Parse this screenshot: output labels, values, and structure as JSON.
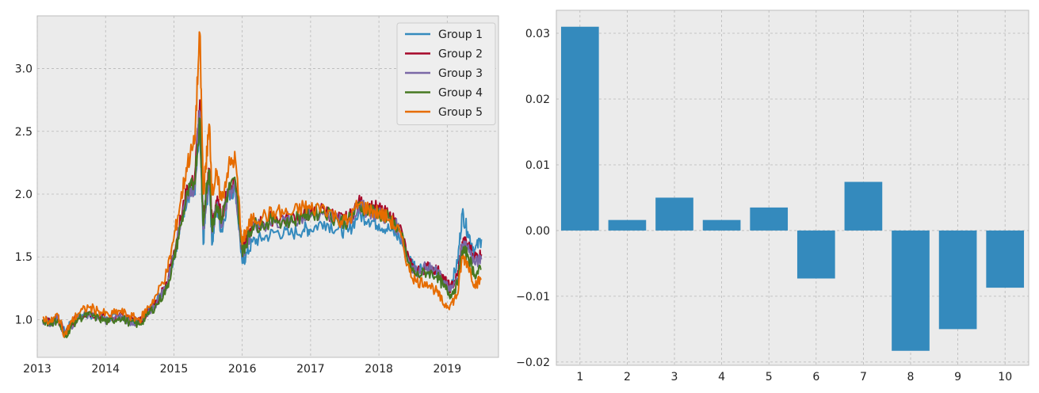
{
  "chart_data": [
    {
      "type": "line",
      "title": "",
      "xlabel": "",
      "ylabel": "",
      "xlim": [
        2013.0,
        2019.75
      ],
      "ylim": [
        0.7,
        3.42
      ],
      "xticks": [
        2013,
        2014,
        2015,
        2016,
        2017,
        2018,
        2019
      ],
      "xtick_labels": [
        "2013",
        "2014",
        "2015",
        "2016",
        "2017",
        "2018",
        "2019"
      ],
      "yticks": [
        1.0,
        1.5,
        2.0,
        2.5,
        3.0
      ],
      "ytick_labels": [
        "1.0",
        "1.5",
        "2.0",
        "2.5",
        "3.0"
      ],
      "grid": true,
      "legend": "top-right",
      "x": [
        2013.08,
        2013.2,
        2013.3,
        2013.4,
        2013.5,
        2013.6,
        2013.75,
        2013.9,
        2014.05,
        2014.2,
        2014.35,
        2014.5,
        2014.6,
        2014.75,
        2014.9,
        2015.0,
        2015.1,
        2015.2,
        2015.3,
        2015.38,
        2015.43,
        2015.47,
        2015.52,
        2015.56,
        2015.62,
        2015.7,
        2015.8,
        2015.9,
        2016.0,
        2016.05,
        2016.15,
        2016.3,
        2016.5,
        2016.7,
        2016.9,
        2017.0,
        2017.2,
        2017.4,
        2017.55,
        2017.7,
        2017.85,
        2018.0,
        2018.15,
        2018.3,
        2018.45,
        2018.55,
        2018.7,
        2018.85,
        2018.95,
        2019.05,
        2019.15,
        2019.22,
        2019.3,
        2019.4,
        2019.5
      ],
      "series": [
        {
          "name": "Group 1",
          "color": "#348ABD",
          "values": [
            1.0,
            0.98,
            1.02,
            0.9,
            0.97,
            1.02,
            1.05,
            1.02,
            1.0,
            1.03,
            0.99,
            0.98,
            1.05,
            1.15,
            1.3,
            1.5,
            1.75,
            2.0,
            2.0,
            2.5,
            1.6,
            1.9,
            2.1,
            1.6,
            1.9,
            1.7,
            2.0,
            2.05,
            1.45,
            1.5,
            1.62,
            1.65,
            1.7,
            1.68,
            1.72,
            1.72,
            1.78,
            1.72,
            1.7,
            1.84,
            1.8,
            1.76,
            1.72,
            1.65,
            1.48,
            1.42,
            1.42,
            1.35,
            1.3,
            1.28,
            1.45,
            1.85,
            1.7,
            1.55,
            1.64
          ]
        },
        {
          "name": "Group 2",
          "color": "#A60628",
          "values": [
            1.0,
            0.97,
            1.02,
            0.88,
            0.96,
            1.03,
            1.06,
            1.03,
            1.0,
            1.04,
            1.0,
            0.98,
            1.05,
            1.15,
            1.3,
            1.55,
            1.8,
            2.05,
            2.1,
            2.75,
            1.8,
            2.0,
            2.2,
            1.75,
            1.95,
            1.82,
            2.05,
            2.1,
            1.55,
            1.6,
            1.75,
            1.78,
            1.82,
            1.8,
            1.85,
            1.85,
            1.88,
            1.8,
            1.8,
            1.93,
            1.9,
            1.88,
            1.82,
            1.75,
            1.45,
            1.38,
            1.42,
            1.4,
            1.32,
            1.25,
            1.35,
            1.62,
            1.6,
            1.5,
            1.52
          ]
        },
        {
          "name": "Group 3",
          "color": "#7A68A6",
          "values": [
            1.0,
            0.97,
            1.01,
            0.87,
            0.95,
            1.02,
            1.05,
            1.02,
            0.99,
            1.03,
            0.99,
            0.97,
            1.04,
            1.14,
            1.28,
            1.52,
            1.78,
            2.02,
            2.05,
            2.65,
            1.72,
            1.95,
            2.15,
            1.7,
            1.9,
            1.78,
            2.02,
            2.06,
            1.52,
            1.57,
            1.72,
            1.75,
            1.78,
            1.77,
            1.82,
            1.82,
            1.86,
            1.78,
            1.78,
            1.9,
            1.87,
            1.84,
            1.8,
            1.72,
            1.45,
            1.38,
            1.42,
            1.38,
            1.3,
            1.23,
            1.32,
            1.6,
            1.58,
            1.45,
            1.48
          ]
        },
        {
          "name": "Group 4",
          "color": "#467821",
          "values": [
            1.0,
            0.97,
            1.0,
            0.86,
            0.95,
            1.01,
            1.04,
            1.01,
            0.98,
            1.02,
            0.98,
            0.96,
            1.03,
            1.12,
            1.25,
            1.48,
            1.75,
            2.0,
            2.1,
            2.6,
            1.75,
            2.0,
            2.18,
            1.72,
            1.92,
            1.8,
            2.04,
            2.1,
            1.55,
            1.6,
            1.75,
            1.76,
            1.8,
            1.78,
            1.84,
            1.84,
            1.87,
            1.79,
            1.78,
            1.91,
            1.88,
            1.85,
            1.8,
            1.72,
            1.42,
            1.35,
            1.38,
            1.35,
            1.26,
            1.2,
            1.28,
            1.55,
            1.52,
            1.36,
            1.4
          ]
        },
        {
          "name": "Group 5",
          "color": "#E66C00",
          "values": [
            1.02,
            0.98,
            1.04,
            0.88,
            0.98,
            1.05,
            1.1,
            1.07,
            1.03,
            1.07,
            1.03,
            1.0,
            1.08,
            1.2,
            1.38,
            1.65,
            1.95,
            2.25,
            2.4,
            3.28,
            2.0,
            2.25,
            2.55,
            2.0,
            2.15,
            1.95,
            2.22,
            2.28,
            1.6,
            1.7,
            1.8,
            1.82,
            1.86,
            1.84,
            1.9,
            1.88,
            1.9,
            1.8,
            1.78,
            1.92,
            1.88,
            1.85,
            1.8,
            1.7,
            1.38,
            1.3,
            1.3,
            1.22,
            1.12,
            1.12,
            1.2,
            1.5,
            1.45,
            1.28,
            1.32
          ]
        }
      ]
    },
    {
      "type": "bar",
      "title": "",
      "xlabel": "",
      "ylabel": "",
      "categories": [
        "1",
        "2",
        "3",
        "4",
        "5",
        "6",
        "7",
        "8",
        "9",
        "10"
      ],
      "values": [
        0.031,
        0.0016,
        0.005,
        0.0016,
        0.0035,
        -0.0073,
        0.0074,
        -0.0183,
        -0.015,
        -0.0087
      ],
      "ylim": [
        -0.0205,
        0.0335
      ],
      "yticks": [
        -0.02,
        -0.01,
        0.0,
        0.01,
        0.02,
        0.03
      ],
      "ytick_labels": [
        "−0.02",
        "−0.01",
        "0.00",
        "0.01",
        "0.02",
        "0.03"
      ],
      "bar_color": "#348ABD",
      "grid": true
    }
  ]
}
